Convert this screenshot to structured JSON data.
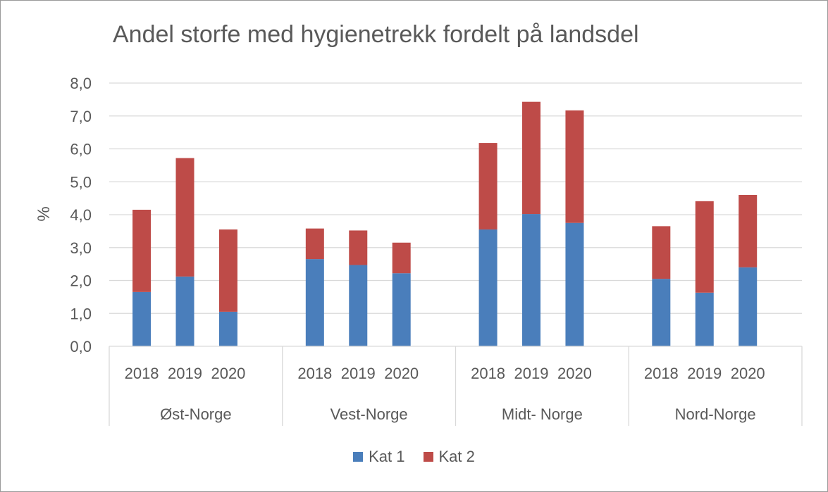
{
  "chart_data": {
    "type": "bar",
    "stacked": true,
    "title": "Andel storfe med hygienetrekk fordelt på landsdel",
    "ylabel": "%",
    "xlabel": "",
    "ylim": [
      0,
      8
    ],
    "yticks": [
      "0,0",
      "1,0",
      "2,0",
      "3,0",
      "4,0",
      "5,0",
      "6,0",
      "7,0",
      "8,0"
    ],
    "grid": true,
    "legend_position": "bottom",
    "groups": [
      {
        "name": "Øst-Norge",
        "categories": [
          "2018",
          "2019",
          "2020"
        ]
      },
      {
        "name": "Vest-Norge",
        "categories": [
          "2018",
          "2019",
          "2020"
        ]
      },
      {
        "name": "Midt- Norge",
        "categories": [
          "2018",
          "2019",
          "2020"
        ]
      },
      {
        "name": "Nord-Norge",
        "categories": [
          "2018",
          "2019",
          "2020"
        ]
      }
    ],
    "series": [
      {
        "name": "Kat 1",
        "color": "#4a7ebb",
        "values": [
          1.65,
          2.12,
          1.05,
          2.65,
          2.47,
          2.22,
          3.55,
          4.02,
          3.75,
          2.05,
          1.63,
          2.4
        ]
      },
      {
        "name": "Kat 2",
        "color": "#be4b48",
        "values": [
          2.5,
          3.6,
          2.5,
          0.93,
          1.05,
          0.93,
          2.63,
          3.41,
          3.42,
          1.6,
          2.78,
          2.2
        ]
      }
    ]
  }
}
